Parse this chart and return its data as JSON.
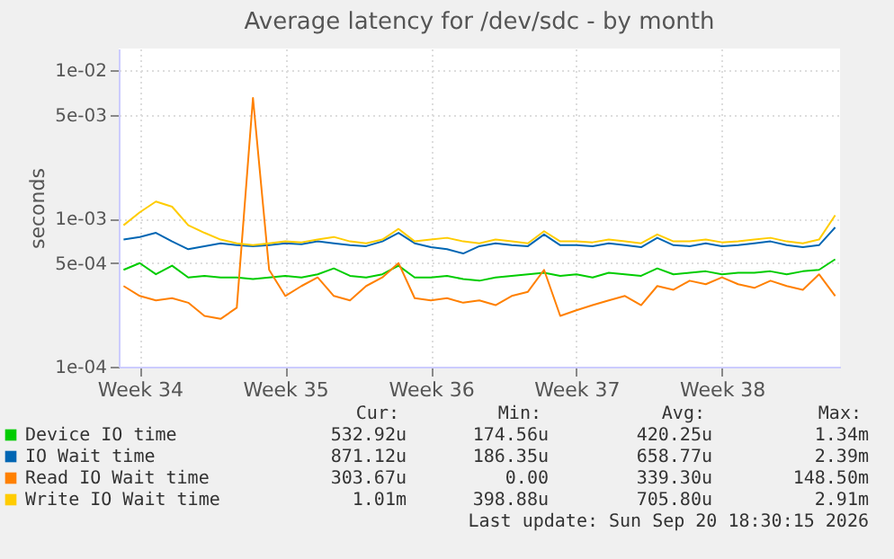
{
  "chart_data": {
    "type": "line",
    "title": "Average latency for /dev/sdc - by month",
    "ylabel": "seconds",
    "categories": [
      null,
      "Week 34",
      null,
      null,
      null,
      null,
      null,
      null,
      null,
      null,
      "Week 35",
      null,
      null,
      null,
      null,
      null,
      null,
      null,
      null,
      "Week 36",
      null,
      null,
      null,
      null,
      null,
      null,
      null,
      null,
      "Week 37",
      null,
      null,
      null,
      null,
      null,
      null,
      null,
      null,
      "Week 38",
      null,
      null,
      null,
      null,
      null,
      null,
      null
    ],
    "ylim": [
      0.0001,
      0.014
    ],
    "log": true,
    "yticks": [
      {
        "value": 0.0001,
        "label": "1e-04"
      },
      {
        "value": 0.0005,
        "label": "5e-04"
      },
      {
        "value": 0.001,
        "label": "1e-03"
      },
      {
        "value": 0.005,
        "label": "5e-03"
      },
      {
        "value": 0.01,
        "label": "1e-02"
      }
    ],
    "grid": true,
    "legend": "bottom",
    "line_style": "solid",
    "marker": "none",
    "series": [
      {
        "name": "Device IO time",
        "color": "#00cc00",
        "values": [
          0.00045,
          0.0005,
          0.00042,
          0.00048,
          0.0004,
          0.00041,
          0.0004,
          0.0004,
          0.00039,
          0.0004,
          0.00041,
          0.0004,
          0.00042,
          0.00046,
          0.00041,
          0.0004,
          0.00042,
          0.00048,
          0.0004,
          0.0004,
          0.00041,
          0.00039,
          0.00038,
          0.0004,
          0.00041,
          0.00042,
          0.00043,
          0.00041,
          0.00042,
          0.0004,
          0.00043,
          0.00042,
          0.00041,
          0.00046,
          0.00042,
          0.00043,
          0.00044,
          0.00042,
          0.00043,
          0.00043,
          0.00044,
          0.00042,
          0.00044,
          0.00045,
          0.00053
        ]
      },
      {
        "name": "IO Wait time",
        "color": "#0066b3",
        "values": [
          0.00072,
          0.00075,
          0.0008,
          0.0007,
          0.00062,
          0.00065,
          0.00068,
          0.00066,
          0.00065,
          0.00066,
          0.00068,
          0.00067,
          0.0007,
          0.00068,
          0.00066,
          0.00065,
          0.0007,
          0.0008,
          0.00068,
          0.00064,
          0.00062,
          0.00058,
          0.00065,
          0.00068,
          0.00066,
          0.00065,
          0.00078,
          0.00066,
          0.00066,
          0.00065,
          0.00068,
          0.00066,
          0.00064,
          0.00074,
          0.00066,
          0.00065,
          0.00068,
          0.00065,
          0.00066,
          0.00068,
          0.0007,
          0.00066,
          0.00064,
          0.00066,
          0.00087
        ]
      },
      {
        "name": "Read IO Wait time",
        "color": "#ff8000",
        "values": [
          0.00035,
          0.0003,
          0.00028,
          0.00029,
          0.00027,
          0.00022,
          0.00021,
          0.00025,
          0.0065,
          0.00045,
          0.0003,
          0.00035,
          0.0004,
          0.0003,
          0.00028,
          0.00035,
          0.0004,
          0.0005,
          0.00029,
          0.00028,
          0.00029,
          0.00027,
          0.00028,
          0.00026,
          0.0003,
          0.00032,
          0.00045,
          0.00022,
          0.00024,
          0.00026,
          0.00028,
          0.0003,
          0.00026,
          0.00035,
          0.00033,
          0.00038,
          0.00036,
          0.0004,
          0.00036,
          0.00034,
          0.00038,
          0.00035,
          0.00033,
          0.00042,
          0.0003
        ]
      },
      {
        "name": "Write IO Wait time",
        "color": "#ffcc00",
        "values": [
          0.0009,
          0.0011,
          0.0013,
          0.0012,
          0.0009,
          0.0008,
          0.00072,
          0.00068,
          0.00066,
          0.00068,
          0.0007,
          0.00069,
          0.00072,
          0.00075,
          0.0007,
          0.00068,
          0.00072,
          0.00085,
          0.0007,
          0.00072,
          0.00074,
          0.0007,
          0.00068,
          0.00072,
          0.0007,
          0.00068,
          0.00082,
          0.0007,
          0.0007,
          0.00069,
          0.00072,
          0.0007,
          0.00068,
          0.00078,
          0.0007,
          0.0007,
          0.00072,
          0.00069,
          0.0007,
          0.00072,
          0.00074,
          0.0007,
          0.00068,
          0.00072,
          0.00105
        ]
      }
    ],
    "annotations": [
      "Cur:",
      "Min:",
      "Avg:",
      "Max:",
      "532.92u",
      "174.56u",
      "420.25u",
      "1.34m",
      "871.12u",
      "186.35u",
      "658.77u",
      "2.39m",
      "303.67u",
      "0.00",
      "339.30u",
      "148.50m",
      "1.01m",
      "398.88u",
      "705.80u",
      "2.91m",
      "Last update: Sun Sep 20 18:30:15 2026"
    ]
  }
}
